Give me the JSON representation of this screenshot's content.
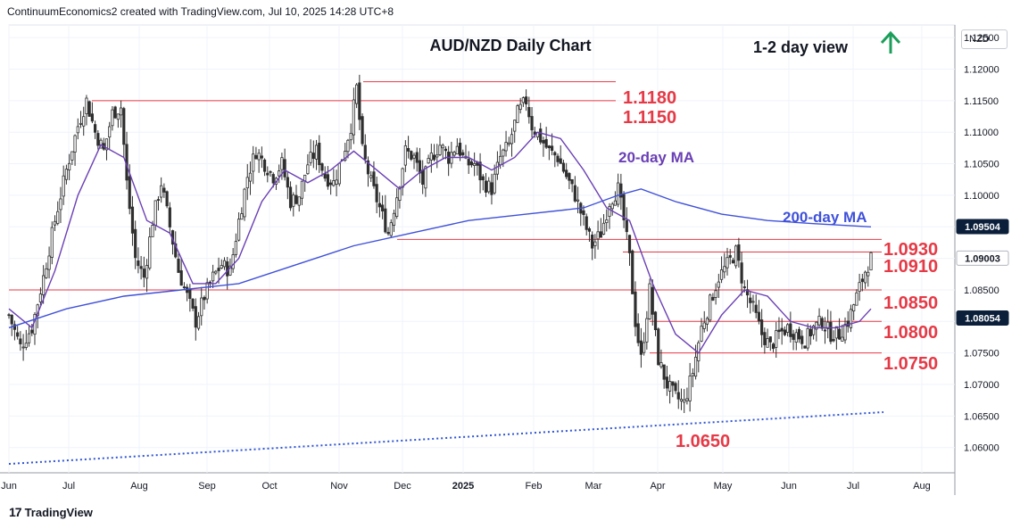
{
  "header": {
    "attribution": "ContinuumEconomics2 created with TradingView.com, Jul 10, 2025 14:28 UTC+8"
  },
  "footer": {
    "brand": "TradingView",
    "logo_text": "17"
  },
  "currency": "NZD",
  "colors": {
    "up": "#2f2f2f",
    "down": "#2f2f2f",
    "level": "#e63946",
    "ma20": "#6a3fb5",
    "ma200": "#3f51d9",
    "trend": "#2f55d4",
    "arrow": "#1b9e5a",
    "price_tag": "#0b1f3a"
  },
  "chart_data": {
    "type": "candlestick",
    "title": "AUD/NZD Daily Chart",
    "view_text": "1-2 day view",
    "view_arrow": "up-arrow",
    "ylim": [
      1.056,
      1.127
    ],
    "y_ticks": [
      "1.12500",
      "1.12000",
      "1.11500",
      "1.11000",
      "1.10500",
      "1.10000",
      "1.09500",
      "1.09000",
      "1.08500",
      "1.08000",
      "1.07500",
      "1.07000",
      "1.06500",
      "1.06000"
    ],
    "x_ticks": [
      "Jun",
      "Jul",
      "Aug",
      "Sep",
      "Oct",
      "Nov",
      "Dec",
      "2025",
      "Feb",
      "Mar",
      "Apr",
      "May",
      "Jun",
      "Jul",
      "Aug"
    ],
    "price_tags": [
      {
        "label": "1.09504",
        "value": 1.09504
      },
      {
        "label": "1.09003",
        "value": 1.09003
      },
      {
        "label": "1.08054",
        "value": 1.08054
      }
    ],
    "levels": [
      {
        "label": "1.1180",
        "value": 1.118
      },
      {
        "label": "1.1150",
        "value": 1.115
      },
      {
        "label": "1.0930",
        "value": 1.093
      },
      {
        "label": "1.0910",
        "value": 1.091
      },
      {
        "label": "1.0850",
        "value": 1.085
      },
      {
        "label": "1.0800",
        "value": 1.08
      },
      {
        "label": "1.0750",
        "value": 1.075
      },
      {
        "label": "1.0650",
        "value": 1.065
      }
    ],
    "annotations": [
      {
        "text": "20-day MA"
      },
      {
        "text": "200-day MA"
      }
    ],
    "close_path": [
      [
        0,
        1.081
      ],
      [
        4,
        1.076
      ],
      [
        8,
        1.079
      ],
      [
        12,
        1.087
      ],
      [
        16,
        1.096
      ],
      [
        20,
        1.104
      ],
      [
        24,
        1.111
      ],
      [
        27,
        1.115
      ],
      [
        30,
        1.11
      ],
      [
        33,
        1.107
      ],
      [
        36,
        1.113
      ],
      [
        39,
        1.114
      ],
      [
        41,
        1.102
      ],
      [
        44,
        1.09
      ],
      [
        47,
        1.087
      ],
      [
        50,
        1.096
      ],
      [
        53,
        1.102
      ],
      [
        56,
        1.095
      ],
      [
        59,
        1.088
      ],
      [
        62,
        1.084
      ],
      [
        65,
        1.08
      ],
      [
        68,
        1.084
      ],
      [
        71,
        1.087
      ],
      [
        74,
        1.089
      ],
      [
        77,
        1.088
      ],
      [
        80,
        1.096
      ],
      [
        83,
        1.103
      ],
      [
        86,
        1.107
      ],
      [
        89,
        1.105
      ],
      [
        92,
        1.103
      ],
      [
        95,
        1.105
      ],
      [
        98,
        1.099
      ],
      [
        101,
        1.1
      ],
      [
        104,
        1.105
      ],
      [
        107,
        1.107
      ],
      [
        110,
        1.103
      ],
      [
        113,
        1.102
      ],
      [
        116,
        1.106
      ],
      [
        119,
        1.111
      ],
      [
        121,
        1.117
      ],
      [
        123,
        1.107
      ],
      [
        126,
        1.102
      ],
      [
        129,
        1.098
      ],
      [
        132,
        1.094
      ],
      [
        135,
        1.1
      ],
      [
        138,
        1.107
      ],
      [
        141,
        1.106
      ],
      [
        144,
        1.102
      ],
      [
        147,
        1.106
      ],
      [
        150,
        1.108
      ],
      [
        153,
        1.106
      ],
      [
        156,
        1.108
      ],
      [
        159,
        1.105
      ],
      [
        162,
        1.105
      ],
      [
        165,
        1.102
      ],
      [
        168,
        1.101
      ],
      [
        171,
        1.106
      ],
      [
        174,
        1.108
      ],
      [
        177,
        1.113
      ],
      [
        180,
        1.115
      ],
      [
        182,
        1.111
      ],
      [
        185,
        1.109
      ],
      [
        188,
        1.107
      ],
      [
        191,
        1.106
      ],
      [
        194,
        1.103
      ],
      [
        197,
        1.1
      ],
      [
        200,
        1.096
      ],
      [
        203,
        1.092
      ],
      [
        206,
        1.094
      ],
      [
        209,
        1.099
      ],
      [
        212,
        1.101
      ],
      [
        214,
        1.096
      ],
      [
        216,
        1.09
      ],
      [
        218,
        1.08
      ],
      [
        220,
        1.074
      ],
      [
        223,
        1.085
      ],
      [
        226,
        1.074
      ],
      [
        229,
        1.07
      ],
      [
        232,
        1.068
      ],
      [
        235,
        1.067
      ],
      [
        238,
        1.072
      ],
      [
        241,
        1.079
      ],
      [
        244,
        1.083
      ],
      [
        247,
        1.087
      ],
      [
        250,
        1.089
      ],
      [
        253,
        1.091
      ],
      [
        256,
        1.085
      ],
      [
        259,
        1.082
      ],
      [
        262,
        1.078
      ],
      [
        265,
        1.076
      ],
      [
        268,
        1.078
      ],
      [
        271,
        1.079
      ],
      [
        274,
        1.078
      ],
      [
        277,
        1.077
      ],
      [
        280,
        1.079
      ],
      [
        283,
        1.08
      ],
      [
        286,
        1.078
      ],
      [
        289,
        1.078
      ],
      [
        292,
        1.08
      ],
      [
        295,
        1.084
      ],
      [
        298,
        1.088
      ],
      [
        300,
        1.09
      ]
    ],
    "ma20_path": [
      [
        0,
        1.082
      ],
      [
        8,
        1.079
      ],
      [
        16,
        1.088
      ],
      [
        24,
        1.1
      ],
      [
        32,
        1.108
      ],
      [
        40,
        1.106
      ],
      [
        48,
        1.096
      ],
      [
        56,
        1.094
      ],
      [
        64,
        1.086
      ],
      [
        72,
        1.086
      ],
      [
        80,
        1.09
      ],
      [
        88,
        1.099
      ],
      [
        96,
        1.104
      ],
      [
        104,
        1.102
      ],
      [
        112,
        1.104
      ],
      [
        120,
        1.107
      ],
      [
        128,
        1.104
      ],
      [
        136,
        1.101
      ],
      [
        144,
        1.104
      ],
      [
        152,
        1.106
      ],
      [
        160,
        1.106
      ],
      [
        168,
        1.104
      ],
      [
        176,
        1.106
      ],
      [
        184,
        1.11
      ],
      [
        192,
        1.109
      ],
      [
        200,
        1.104
      ],
      [
        208,
        1.098
      ],
      [
        216,
        1.096
      ],
      [
        224,
        1.086
      ],
      [
        232,
        1.078
      ],
      [
        240,
        1.075
      ],
      [
        248,
        1.081
      ],
      [
        256,
        1.085
      ],
      [
        264,
        1.084
      ],
      [
        272,
        1.08
      ],
      [
        280,
        1.079
      ],
      [
        288,
        1.079
      ],
      [
        296,
        1.08
      ],
      [
        300,
        1.082
      ]
    ],
    "ma200_path": [
      [
        0,
        1.079
      ],
      [
        20,
        1.082
      ],
      [
        40,
        1.084
      ],
      [
        60,
        1.085
      ],
      [
        80,
        1.086
      ],
      [
        100,
        1.089
      ],
      [
        120,
        1.092
      ],
      [
        140,
        1.094
      ],
      [
        160,
        1.096
      ],
      [
        180,
        1.097
      ],
      [
        200,
        1.098
      ],
      [
        212,
        1.1
      ],
      [
        220,
        1.101
      ],
      [
        232,
        1.099
      ],
      [
        248,
        1.097
      ],
      [
        264,
        1.096
      ],
      [
        280,
        1.0955
      ],
      [
        300,
        1.095
      ]
    ]
  }
}
